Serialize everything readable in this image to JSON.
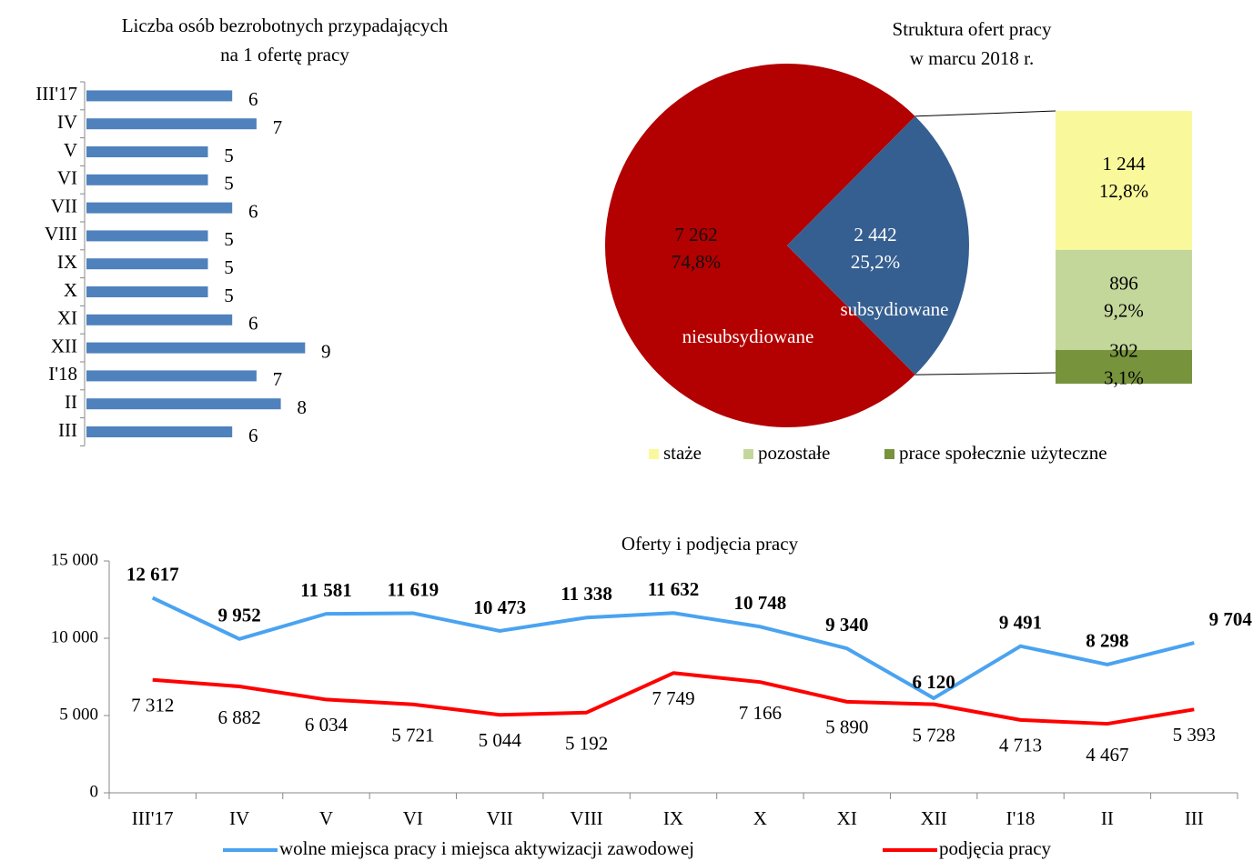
{
  "chart_data": [
    {
      "type": "hbar",
      "title": [
        "Liczba osób bezrobotnych przypadających",
        "na 1 ofertę pracy"
      ],
      "categories": [
        "III'17",
        "IV",
        "V",
        "VI",
        "VII",
        "VIII",
        "IX",
        "X",
        "XI",
        "XII",
        "I'18",
        "II",
        "III"
      ],
      "values": [
        6,
        7,
        5,
        5,
        6,
        5,
        5,
        5,
        6,
        9,
        7,
        8,
        6
      ],
      "color": "#4f81bd"
    },
    {
      "type": "bar-of-pie",
      "title": [
        "Struktura ofert pracy",
        "w marcu 2018 r."
      ],
      "categories": [
        "niesubsydiowane",
        "subsydiowane"
      ],
      "values": [
        7262,
        2442
      ],
      "value_labels": [
        "7 262",
        "2 442"
      ],
      "percents": [
        74.8,
        25.2
      ],
      "percent_labels": [
        "74,8%",
        "25,2%"
      ],
      "colors": [
        "#b30000",
        "#365f91"
      ],
      "breakdown": {
        "categories": [
          "staże",
          "pozostałe",
          "prace społecznie użyteczne"
        ],
        "values": [
          1244,
          896,
          302
        ],
        "value_labels": [
          "1 244",
          "896",
          "302"
        ],
        "percents": [
          12.8,
          9.2,
          3.1
        ],
        "percent_labels": [
          "12,8%",
          "9,2%",
          "3,1%"
        ],
        "colors": [
          "#f9f99c",
          "#c4d79b",
          "#77933c"
        ]
      }
    },
    {
      "type": "line",
      "title": "Oferty i podjęcia pracy",
      "categories": [
        "III'17",
        "IV",
        "V",
        "VI",
        "VII",
        "VIII",
        "IX",
        "X",
        "XI",
        "XII",
        "I'18",
        "II",
        "III"
      ],
      "ylim": [
        0,
        15000
      ],
      "yticks": [
        0,
        {
          "value": 5000,
          "label": "5 000"
        },
        {
          "value": 10000,
          "label": "10 000"
        },
        {
          "value": 15000,
          "label": "15 000"
        }
      ],
      "series": [
        {
          "name": "wolne miejsca pracy i miejsca aktywizacji zawodowej",
          "color": "#4aa3f0",
          "values": [
            12617,
            9952,
            11581,
            11619,
            10473,
            11338,
            11632,
            10748,
            9340,
            6120,
            9491,
            8298,
            9704
          ],
          "value_labels": [
            "12 617",
            "9 952",
            "11 581",
            "11 619",
            "10 473",
            "11 338",
            "11 632",
            "10 748",
            "9 340",
            "6 120",
            "9 491",
            "8 298",
            "9 704"
          ]
        },
        {
          "name": "podjęcia pracy",
          "color": "#ff0000",
          "values": [
            7312,
            6882,
            6034,
            5721,
            5044,
            5192,
            7749,
            7166,
            5890,
            5728,
            4713,
            4467,
            5393
          ],
          "value_labels": [
            "7 312",
            "6 882",
            "6 034",
            "5 721",
            "5 044",
            "5 192",
            "7 749",
            "7 166",
            "5 890",
            "5 728",
            "4 713",
            "4 467",
            "5 393"
          ]
        }
      ]
    }
  ]
}
